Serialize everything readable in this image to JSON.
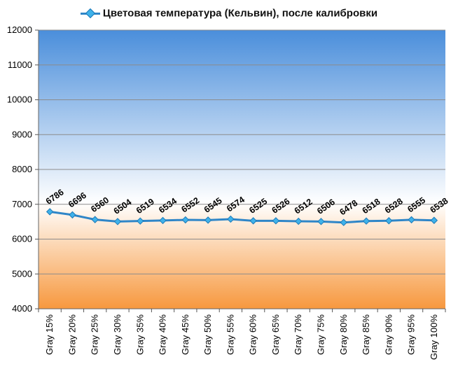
{
  "chart_data": {
    "type": "line",
    "title": "",
    "xlabel": "",
    "ylabel": "",
    "categories": [
      "Gray 15%",
      "Gray 20%",
      "Gray 25%",
      "Gray 30%",
      "Gray 35%",
      "Gray 40%",
      "Gray 45%",
      "Gray 50%",
      "Gray 55%",
      "Gray 60%",
      "Gray 65%",
      "Gray 70%",
      "Gray 75%",
      "Gray 80%",
      "Gray 85%",
      "Gray 90%",
      "Gray 95%",
      "Gray 100%"
    ],
    "series": [
      {
        "name": "Цветовая температура (Кельвин), после калибровки",
        "values": [
          6786,
          6696,
          6560,
          6504,
          6519,
          6534,
          6552,
          6545,
          6574,
          6525,
          6526,
          6512,
          6506,
          6478,
          6518,
          6528,
          6555,
          6538
        ],
        "color": "#2f86c8",
        "marker_color": "#3fb2ea"
      }
    ],
    "ylim": [
      4000,
      12000
    ],
    "yticks": [
      4000,
      5000,
      6000,
      7000,
      8000,
      9000,
      10000,
      11000,
      12000
    ],
    "grid": true,
    "legend": "top",
    "data_labels": true,
    "background_gradient": {
      "top": "#4a8edb",
      "middle": "#ffffff",
      "bottom": "#f7983e"
    }
  }
}
